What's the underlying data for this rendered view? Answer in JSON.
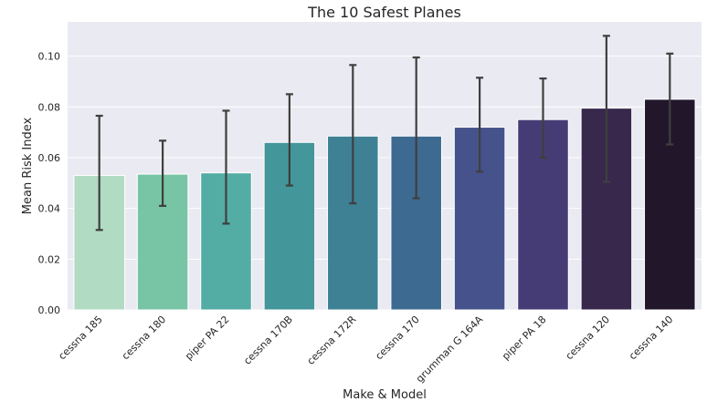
{
  "chart_data": {
    "type": "bar",
    "title": "The 10 Safest Planes",
    "xlabel": "Make & Model",
    "ylabel": "Mean Risk Index",
    "categories": [
      "cessna 185",
      "cessna 180",
      "piper PA 22",
      "cessna 170B",
      "cessna 172R",
      "cessna 170",
      "grumman G 164A",
      "piper PA 18",
      "cessna 120",
      "cessna 140"
    ],
    "values": [
      0.053,
      0.0535,
      0.054,
      0.066,
      0.0685,
      0.0685,
      0.072,
      0.075,
      0.0795,
      0.083
    ],
    "error_low": [
      0.0315,
      0.041,
      0.034,
      0.049,
      0.042,
      0.044,
      0.0545,
      0.06,
      0.0505,
      0.0652
    ],
    "error_high": [
      0.0765,
      0.0667,
      0.0785,
      0.085,
      0.0965,
      0.0995,
      0.0915,
      0.0912,
      0.108,
      0.101
    ],
    "ylim": [
      0,
      0.1135
    ],
    "yticks": [
      0,
      0.02,
      0.04,
      0.06,
      0.08,
      0.1
    ],
    "ytick_labels": [
      "0.00",
      "0.02",
      "0.04",
      "0.06",
      "0.08",
      "0.10"
    ],
    "grid": true,
    "colors": [
      "#b1dbc3",
      "#78c5a5",
      "#53ada4",
      "#43969a",
      "#3e8094",
      "#3d6a91",
      "#45528c",
      "#463c75",
      "#37284c",
      "#22162a"
    ],
    "background": "#eaeaf2",
    "error_color": "#3f3f3f"
  }
}
